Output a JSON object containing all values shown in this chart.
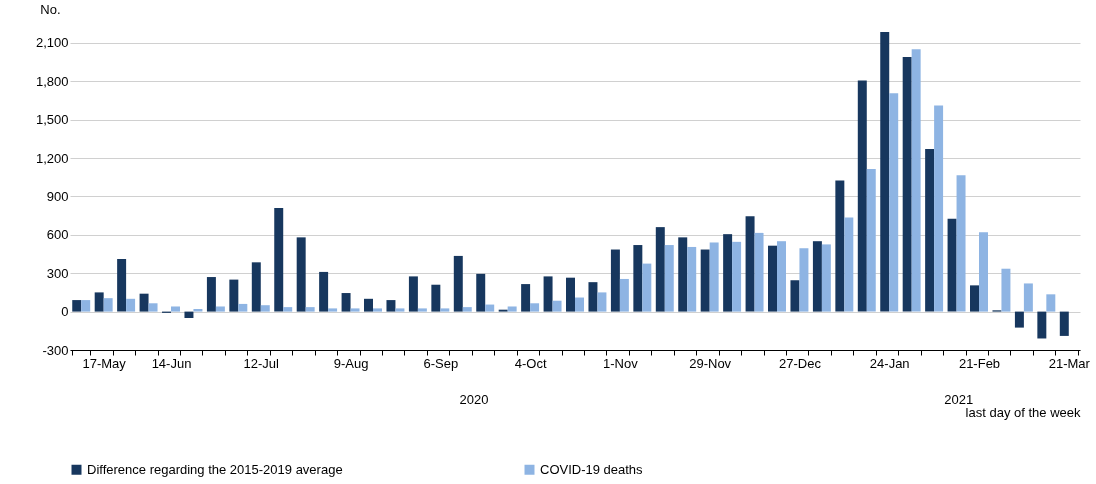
{
  "chart_data": {
    "type": "bar",
    "ylabel": "No.",
    "xlabel": "last day of the week",
    "categories": [
      null,
      "17-May",
      null,
      null,
      "14-Jun",
      null,
      null,
      null,
      "12-Jul",
      null,
      null,
      null,
      "9-Aug",
      null,
      null,
      null,
      "6-Sep",
      null,
      null,
      null,
      "4-Oct",
      null,
      null,
      null,
      "1-Nov",
      null,
      null,
      null,
      "29-Nov",
      null,
      null,
      null,
      "27-Dec",
      null,
      null,
      null,
      "24-Jan",
      null,
      null,
      null,
      "21-Feb",
      null,
      null,
      null,
      "21-Mar"
    ],
    "series": [
      {
        "name": "Difference regarding the 2015-2019 average",
        "color": "#17375e",
        "values": [
          90,
          150,
          410,
          140,
          -10,
          -50,
          270,
          250,
          385,
          810,
          580,
          310,
          145,
          100,
          90,
          275,
          210,
          435,
          295,
          15,
          215,
          275,
          265,
          230,
          485,
          520,
          660,
          580,
          485,
          605,
          745,
          515,
          245,
          550,
          1025,
          1805,
          2185,
          1990,
          1270,
          725,
          205,
          10,
          -125,
          -210,
          -190
        ]
      },
      {
        "name": "COVID-19 deaths",
        "color": "#8eb4e3",
        "values": [
          90,
          105,
          100,
          65,
          40,
          20,
          40,
          60,
          50,
          35,
          35,
          25,
          25,
          25,
          25,
          25,
          25,
          35,
          55,
          40,
          65,
          85,
          110,
          150,
          255,
          375,
          520,
          505,
          540,
          545,
          615,
          550,
          495,
          525,
          735,
          1115,
          1705,
          2050,
          1610,
          1065,
          620,
          335,
          220,
          135,
          null
        ]
      }
    ],
    "ylim": [
      -300,
      2200
    ],
    "yticks": [
      -300,
      0,
      300,
      600,
      900,
      {
        "value": 1200,
        "label": "1,200"
      },
      {
        "value": 1500,
        "label": "1,500"
      },
      {
        "value": 1800,
        "label": "1,800"
      },
      {
        "value": 2100,
        "label": "2,100"
      }
    ],
    "grid": "y",
    "legend": "bottom",
    "annotations": [
      "2020",
      "2021"
    ]
  }
}
